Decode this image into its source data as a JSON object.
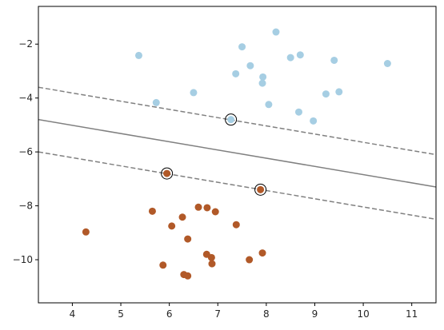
{
  "chart_data": {
    "type": "scatter",
    "title": "",
    "xlabel": "",
    "ylabel": "",
    "xlim": [
      3.3,
      11.5
    ],
    "ylim": [
      -11.6,
      -0.6
    ],
    "grid": false,
    "x_ticks": [
      4,
      5,
      6,
      7,
      8,
      9,
      10,
      11
    ],
    "y_ticks": [
      -2,
      -4,
      -6,
      -8,
      -10
    ],
    "x_tick_labels": [
      "4",
      "5",
      "6",
      "7",
      "8",
      "9",
      "10",
      "11"
    ],
    "y_tick_labels": [
      "−2",
      "−4",
      "−6",
      "−8",
      "−10"
    ],
    "colors": {
      "class_a": "#a6cee3",
      "class_b": "#b15928",
      "decision_line": "#808080",
      "support_ring": "#000000",
      "axes": "#000000"
    },
    "series": [
      {
        "class": "class_a",
        "points": [
          [
            8.2,
            -1.55
          ],
          [
            7.5,
            -2.1
          ],
          [
            5.37,
            -2.42
          ],
          [
            8.7,
            -2.4
          ],
          [
            8.5,
            -2.5
          ],
          [
            9.4,
            -2.6
          ],
          [
            10.5,
            -2.72
          ],
          [
            7.67,
            -2.8
          ],
          [
            7.93,
            -3.22
          ],
          [
            7.37,
            -3.1
          ],
          [
            7.92,
            -3.45
          ],
          [
            6.5,
            -3.8
          ],
          [
            9.5,
            -3.77
          ],
          [
            9.23,
            -3.85
          ],
          [
            5.73,
            -4.17
          ],
          [
            8.05,
            -4.24
          ],
          [
            8.67,
            -4.52
          ],
          [
            8.97,
            -4.85
          ],
          [
            7.27,
            -4.8
          ]
        ]
      },
      {
        "class": "class_b",
        "points": [
          [
            5.95,
            -6.8
          ],
          [
            7.88,
            -7.4
          ],
          [
            6.6,
            -8.05
          ],
          [
            6.78,
            -8.07
          ],
          [
            6.95,
            -8.22
          ],
          [
            5.65,
            -8.2
          ],
          [
            6.27,
            -8.42
          ],
          [
            6.05,
            -8.75
          ],
          [
            7.38,
            -8.7
          ],
          [
            4.28,
            -8.97
          ],
          [
            6.38,
            -9.23
          ],
          [
            7.92,
            -9.75
          ],
          [
            6.77,
            -9.8
          ],
          [
            6.87,
            -9.92
          ],
          [
            7.65,
            -10.0
          ],
          [
            6.88,
            -10.15
          ],
          [
            5.87,
            -10.2
          ],
          [
            6.3,
            -10.55
          ],
          [
            6.38,
            -10.6
          ]
        ]
      }
    ],
    "support_vectors": [
      [
        7.27,
        -4.8
      ],
      [
        5.95,
        -6.8
      ],
      [
        7.88,
        -7.4
      ]
    ],
    "lines": [
      {
        "style": "solid",
        "points": [
          [
            3.3,
            -4.8
          ],
          [
            11.5,
            -7.3
          ]
        ]
      },
      {
        "style": "dashed",
        "points": [
          [
            3.3,
            -3.6
          ],
          [
            11.5,
            -6.1
          ]
        ]
      },
      {
        "style": "dashed",
        "points": [
          [
            3.3,
            -6.0
          ],
          [
            11.5,
            -8.5
          ]
        ]
      }
    ]
  }
}
